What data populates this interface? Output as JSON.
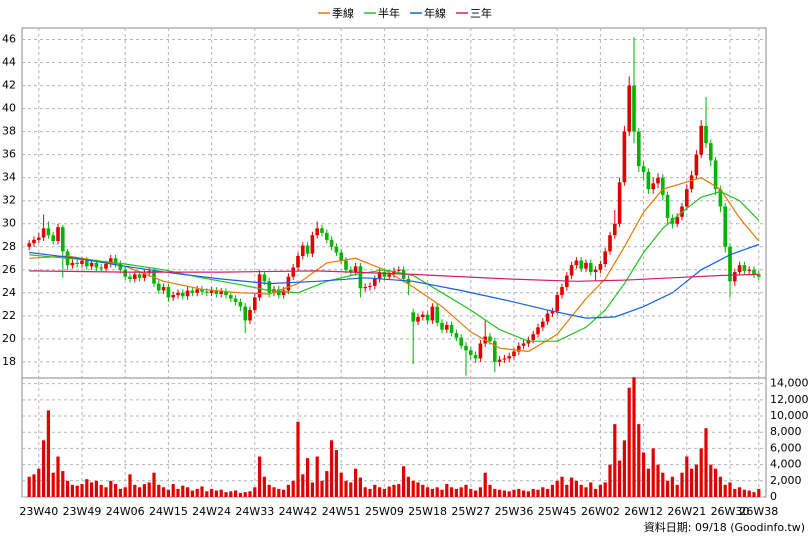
{
  "chart_data": [
    {
      "type": "candlestick",
      "up_color": "#e00000",
      "down_color": "#00b400",
      "xlim": [
        -1.5,
        153.5
      ],
      "ylim": [
        16.6,
        47
      ],
      "yticks": [
        18,
        20,
        22,
        24,
        26,
        28,
        30,
        32,
        34,
        36,
        38,
        40,
        42,
        44,
        46
      ],
      "grid": true,
      "open": [
        28.0,
        28.3,
        28.6,
        28.8,
        29.6,
        29.0,
        28.5,
        29.7,
        27.6,
        26.4,
        26.6,
        26.5,
        26.8,
        26.3,
        26.6,
        26.2,
        26.1,
        26.5,
        27.0,
        26.5,
        26.0,
        25.4,
        25.2,
        25.6,
        25.3,
        25.7,
        25.9,
        24.8,
        24.2,
        24.5,
        23.6,
        23.8,
        24.0,
        23.7,
        24.2,
        24.0,
        24.3,
        24.1,
        24.0,
        24.2,
        23.9,
        24.1,
        23.8,
        23.5,
        23.2,
        22.8,
        21.6,
        22.5,
        23.6,
        25.6,
        25.0,
        24.0,
        24.3,
        23.8,
        24.2,
        25.4,
        26.2,
        27.2,
        28.1,
        27.4,
        29.0,
        29.6,
        29.2,
        28.6,
        28.0,
        27.5,
        26.8,
        26.0,
        25.8,
        26.3,
        24.4,
        24.5,
        24.6,
        25.2,
        25.8,
        25.4,
        25.6,
        25.9,
        26.0,
        25.2,
        22.3,
        21.5,
        21.9,
        22.1,
        21.6,
        22.8,
        21.4,
        20.8,
        21.2,
        20.5,
        20.1,
        19.4,
        19.0,
        18.6,
        18.3,
        19.6,
        20.2,
        19.8,
        18.0,
        18.2,
        18.3,
        18.5,
        18.9,
        19.4,
        19.6,
        19.9,
        20.4,
        21.0,
        21.5,
        22.2,
        22.4,
        23.8,
        24.5,
        25.5,
        26.4,
        26.8,
        26.1,
        26.6,
        25.8,
        26.0,
        26.5,
        27.6,
        29.0,
        30.0,
        33.6,
        38.0,
        42.0,
        38.0,
        35.0,
        34.5,
        33.0,
        33.5,
        34.0,
        32.5,
        30.5,
        30.0,
        30.6,
        31.5,
        33.0,
        34.2,
        36.0,
        38.5,
        37.0,
        35.5,
        33.0,
        31.5,
        28.0,
        25.0,
        25.8,
        26.4,
        25.9,
        26.0,
        25.6
      ],
      "high": [
        28.6,
        28.9,
        29.2,
        30.8,
        30.2,
        29.3,
        30.0,
        29.9,
        27.8,
        26.9,
        26.9,
        27.1,
        27.1,
        26.9,
        26.9,
        26.5,
        26.8,
        27.3,
        27.3,
        26.8,
        26.3,
        25.7,
        25.9,
        25.9,
        26.0,
        26.2,
        26.2,
        25.1,
        24.8,
        24.8,
        24.1,
        24.3,
        24.3,
        24.5,
        24.5,
        24.6,
        24.6,
        24.4,
        24.5,
        24.5,
        24.4,
        24.4,
        24.1,
        23.8,
        23.5,
        23.1,
        22.8,
        23.9,
        26.0,
        25.9,
        25.3,
        24.6,
        24.6,
        24.5,
        25.7,
        26.5,
        27.5,
        28.4,
        28.4,
        29.3,
        30.2,
        29.9,
        29.5,
        28.9,
        28.3,
        27.8,
        27.1,
        26.3,
        26.6,
        26.6,
        24.8,
        24.9,
        25.5,
        26.1,
        26.1,
        25.9,
        26.2,
        26.3,
        26.3,
        25.5,
        22.6,
        22.2,
        22.4,
        22.4,
        23.1,
        23.1,
        21.7,
        21.5,
        21.5,
        20.8,
        20.4,
        19.7,
        19.3,
        18.9,
        19.9,
        21.6,
        20.5,
        20.1,
        18.5,
        18.6,
        18.8,
        19.2,
        19.7,
        19.9,
        20.2,
        20.7,
        21.3,
        21.8,
        22.5,
        22.7,
        24.1,
        24.8,
        25.8,
        26.7,
        27.1,
        27.1,
        26.9,
        26.9,
        26.3,
        26.8,
        27.9,
        29.3,
        31.2,
        34.0,
        38.5,
        42.8,
        46.2,
        38.3,
        35.4,
        34.8,
        34.0,
        34.4,
        34.3,
        32.8,
        30.8,
        30.9,
        31.8,
        33.4,
        34.6,
        36.4,
        39.0,
        41.0,
        37.3,
        35.8,
        33.3,
        31.8,
        28.3,
        26.1,
        26.7,
        26.7,
        26.3,
        26.3,
        25.9
      ],
      "low": [
        27.7,
        28.0,
        28.3,
        28.5,
        28.7,
        28.2,
        28.2,
        25.3,
        26.0,
        26.1,
        26.2,
        26.2,
        26.0,
        26.0,
        25.9,
        25.8,
        25.8,
        26.2,
        26.2,
        25.7,
        25.1,
        24.9,
        24.9,
        25.0,
        25.0,
        25.4,
        24.5,
        23.9,
        23.9,
        23.2,
        23.3,
        23.5,
        23.4,
        23.4,
        23.7,
        23.7,
        23.8,
        23.7,
        23.7,
        23.6,
        23.6,
        23.5,
        23.2,
        22.9,
        22.4,
        20.5,
        21.3,
        22.2,
        23.3,
        24.7,
        23.6,
        23.7,
        23.5,
        23.5,
        23.9,
        25.1,
        25.9,
        26.9,
        27.1,
        27.1,
        28.7,
        28.9,
        28.3,
        27.7,
        27.2,
        26.5,
        25.7,
        25.5,
        25.5,
        23.6,
        24.1,
        24.2,
        24.3,
        24.9,
        25.1,
        25.1,
        25.3,
        25.6,
        24.9,
        23.8,
        17.8,
        21.2,
        21.6,
        21.3,
        21.3,
        21.1,
        20.5,
        20.5,
        20.2,
        19.8,
        19.1,
        16.8,
        18.2,
        17.9,
        18.0,
        19.3,
        19.5,
        17.1,
        17.6,
        17.9,
        18.0,
        18.2,
        18.6,
        19.1,
        19.3,
        19.6,
        20.1,
        20.7,
        21.2,
        21.9,
        22.1,
        23.5,
        24.2,
        25.2,
        26.1,
        25.8,
        25.8,
        25.5,
        25.0,
        25.7,
        26.2,
        27.3,
        28.7,
        29.7,
        33.3,
        37.6,
        37.0,
        34.5,
        33.8,
        32.6,
        32.6,
        33.1,
        32.0,
        30.0,
        29.6,
        29.7,
        30.3,
        31.2,
        32.7,
        33.9,
        35.7,
        36.6,
        35.0,
        32.5,
        31.0,
        27.5,
        23.6,
        24.6,
        25.5,
        25.6,
        25.6,
        25.3,
        25.1
      ],
      "close": [
        28.3,
        28.6,
        28.8,
        29.6,
        29.0,
        28.5,
        29.7,
        27.6,
        26.4,
        26.6,
        26.5,
        26.8,
        26.3,
        26.6,
        26.2,
        26.1,
        26.5,
        27.0,
        26.5,
        26.0,
        25.4,
        25.2,
        25.6,
        25.3,
        25.7,
        25.9,
        24.8,
        24.2,
        24.5,
        23.6,
        23.8,
        24.0,
        23.7,
        24.2,
        24.0,
        24.3,
        24.1,
        24.0,
        24.2,
        23.9,
        24.1,
        23.8,
        23.5,
        23.2,
        22.8,
        21.6,
        22.5,
        23.6,
        25.6,
        25.0,
        24.0,
        24.3,
        23.8,
        24.2,
        25.4,
        26.2,
        27.2,
        28.1,
        27.4,
        29.0,
        29.6,
        29.2,
        28.6,
        28.0,
        27.5,
        26.8,
        26.0,
        25.8,
        26.3,
        24.4,
        24.5,
        24.6,
        25.2,
        25.8,
        25.4,
        25.6,
        25.9,
        26.0,
        25.2,
        24.8,
        21.5,
        21.9,
        22.1,
        21.6,
        22.8,
        21.4,
        20.8,
        21.2,
        20.5,
        20.1,
        19.4,
        19.0,
        18.6,
        18.3,
        19.6,
        20.2,
        19.8,
        18.0,
        18.2,
        18.3,
        18.5,
        18.9,
        19.4,
        19.6,
        19.9,
        20.4,
        21.0,
        21.5,
        22.2,
        22.4,
        23.8,
        24.5,
        25.5,
        26.4,
        26.8,
        26.1,
        26.6,
        25.8,
        26.0,
        26.5,
        27.6,
        29.0,
        30.0,
        33.6,
        38.0,
        42.0,
        38.0,
        35.0,
        34.5,
        33.0,
        33.5,
        34.0,
        32.5,
        30.5,
        30.0,
        30.6,
        31.5,
        33.0,
        34.2,
        36.0,
        38.5,
        37.0,
        35.5,
        33.0,
        31.5,
        28.0,
        25.0,
        25.8,
        26.4,
        25.9,
        26.0,
        25.6,
        25.4
      ],
      "series": [
        {
          "name": "季線",
          "color": "#e87800",
          "x": [
            0,
            8,
            14,
            20,
            28,
            36,
            44,
            50,
            56,
            62,
            68,
            74,
            80,
            86,
            92,
            98,
            104,
            110,
            116,
            120,
            124,
            128,
            132,
            136,
            140,
            144,
            148,
            152
          ],
          "values": [
            27.0,
            27.2,
            26.8,
            26.3,
            25.0,
            24.3,
            24.0,
            23.9,
            24.8,
            26.6,
            27.0,
            26.0,
            24.5,
            22.8,
            20.6,
            19.2,
            18.9,
            20.4,
            23.5,
            25.2,
            28.0,
            31.0,
            33.0,
            33.5,
            34.0,
            33.0,
            30.5,
            28.5
          ]
        },
        {
          "name": "半年",
          "color": "#22c022",
          "x": [
            0,
            8,
            14,
            20,
            28,
            36,
            44,
            50,
            56,
            62,
            68,
            74,
            80,
            86,
            92,
            98,
            104,
            110,
            116,
            120,
            124,
            128,
            132,
            136,
            140,
            144,
            148,
            152
          ],
          "values": [
            27.3,
            27.0,
            26.8,
            26.5,
            26.0,
            25.3,
            24.7,
            24.2,
            24.0,
            25.0,
            25.6,
            26.0,
            25.5,
            24.0,
            22.5,
            20.8,
            19.8,
            19.8,
            21.0,
            22.5,
            24.8,
            27.5,
            29.6,
            31.0,
            32.3,
            32.8,
            32.0,
            30.3
          ]
        },
        {
          "name": "年線",
          "color": "#1460e0",
          "x": [
            0,
            10,
            20,
            30,
            40,
            50,
            60,
            70,
            80,
            90,
            100,
            108,
            116,
            122,
            128,
            134,
            140,
            146,
            152
          ],
          "values": [
            27.5,
            27.0,
            26.3,
            25.7,
            25.2,
            24.8,
            25.0,
            25.3,
            25.0,
            24.2,
            23.3,
            22.5,
            21.8,
            21.9,
            22.8,
            24.0,
            26.0,
            27.3,
            28.2
          ]
        },
        {
          "name": "三年",
          "color": "#d0206a",
          "x": [
            0,
            20,
            40,
            60,
            80,
            100,
            114,
            124,
            134,
            144,
            152
          ],
          "values": [
            25.9,
            25.8,
            25.8,
            25.9,
            25.6,
            25.2,
            25.0,
            25.1,
            25.3,
            25.5,
            25.6
          ]
        }
      ]
    },
    {
      "type": "bar",
      "color": "#e00000",
      "xlim": [
        -1.5,
        153.5
      ],
      "ylim": [
        0,
        14700
      ],
      "yticks": [
        0,
        {
          "value": 2000,
          "label": "2,000"
        },
        {
          "value": 4000,
          "label": "4,000"
        },
        {
          "value": 6000,
          "label": "6,000"
        },
        {
          "value": 8000,
          "label": "8,000"
        },
        {
          "value": 10000,
          "label": "10,000"
        },
        {
          "value": 12000,
          "label": "12,000"
        },
        {
          "value": 14000,
          "label": "14,000"
        }
      ],
      "xticks": [
        {
          "value": 2,
          "label": "23W40"
        },
        {
          "value": 11,
          "label": "23W49"
        },
        {
          "value": 20,
          "label": "24W06"
        },
        {
          "value": 29,
          "label": "24W15"
        },
        {
          "value": 38,
          "label": "24W24"
        },
        {
          "value": 47,
          "label": "24W33"
        },
        {
          "value": 56,
          "label": "24W42"
        },
        {
          "value": 65,
          "label": "24W51"
        },
        {
          "value": 74,
          "label": "25W09"
        },
        {
          "value": 83,
          "label": "25W18"
        },
        {
          "value": 92,
          "label": "25W27"
        },
        {
          "value": 101,
          "label": "25W36"
        },
        {
          "value": 110,
          "label": "25W45"
        },
        {
          "value": 119,
          "label": "26W02"
        },
        {
          "value": 128,
          "label": "26W12"
        },
        {
          "value": 137,
          "label": "26W21"
        },
        {
          "value": 146,
          "label": "26W30"
        },
        {
          "value": 152,
          "label": "26W38"
        }
      ],
      "values": [
        2500,
        2800,
        3500,
        7000,
        10700,
        3000,
        5000,
        3200,
        2000,
        1500,
        1400,
        1600,
        2200,
        1800,
        2000,
        1500,
        1200,
        2000,
        1600,
        1000,
        1200,
        2800,
        1500,
        1200,
        1600,
        1800,
        3000,
        1500,
        1200,
        900,
        1600,
        1000,
        1400,
        1200,
        800,
        1000,
        1300,
        700,
        1000,
        800,
        900,
        600,
        700,
        800,
        500,
        600,
        700,
        1200,
        5000,
        2500,
        1500,
        1200,
        1000,
        900,
        1500,
        2000,
        9300,
        2800,
        4800,
        1800,
        5000,
        2000,
        3200,
        7000,
        5800,
        3000,
        2000,
        1800,
        3500,
        2400,
        1200,
        1000,
        1500,
        1200,
        1000,
        1300,
        1500,
        1600,
        3800,
        2500,
        2000,
        1800,
        1500,
        1200,
        1000,
        1200,
        900,
        1600,
        1200,
        1000,
        1200,
        1500,
        1000,
        800,
        1200,
        3000,
        1500,
        1000,
        900,
        800,
        700,
        900,
        1000,
        800,
        700,
        1000,
        900,
        1200,
        1000,
        1500,
        2000,
        2500,
        1500,
        2400,
        2000,
        1500,
        1200,
        1800,
        1000,
        1500,
        1800,
        4000,
        9000,
        4500,
        7000,
        13500,
        14800,
        9000,
        5500,
        3500,
        6000,
        4000,
        3000,
        2000,
        2500,
        1500,
        3000,
        5000,
        3500,
        4000,
        6000,
        8500,
        4000,
        3500,
        2500,
        1500,
        1800,
        1000,
        1200,
        900,
        800,
        600,
        1000
      ],
      "note": "資料日期: 09/18 (Goodinfo.tw)"
    }
  ]
}
